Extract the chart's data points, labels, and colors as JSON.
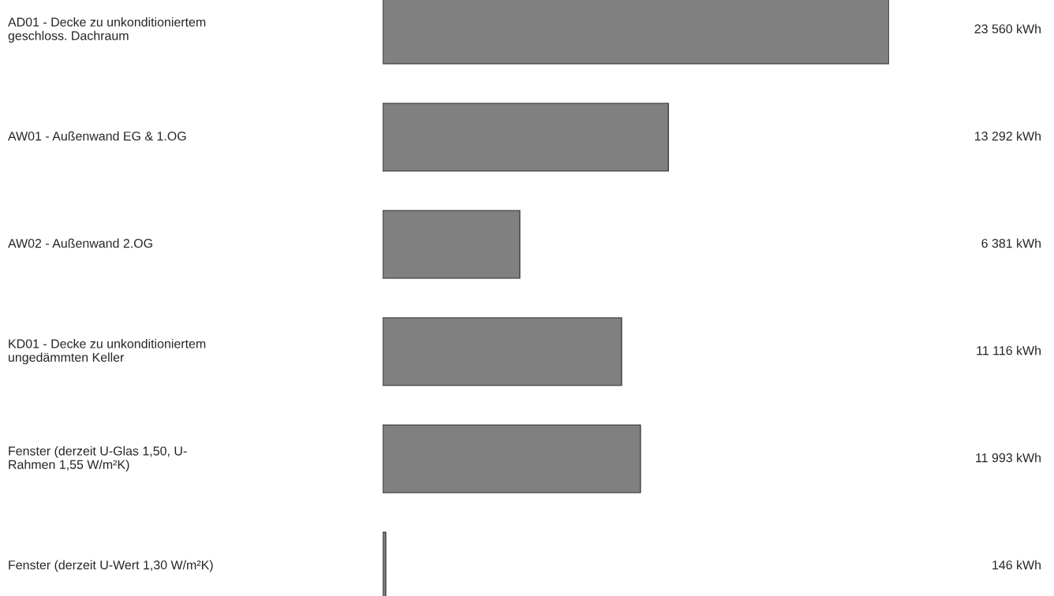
{
  "chart_data": {
    "type": "bar",
    "orientation": "horizontal",
    "categories": [
      "AD01 - Decke zu unkonditioniertem\ngeschloss. Dachraum",
      "AW01 - Außenwand EG & 1.OG",
      "AW02 - Außenwand 2.OG",
      "KD01 - Decke zu unkonditioniertem\nungedämmten Keller",
      "Fenster (derzeit U-Glas 1,50, U-\nRahmen 1,55 W/m²K)",
      "Fenster (derzeit U-Wert 1,30 W/m²K)"
    ],
    "values": [
      23560,
      13292,
      6381,
      11116,
      11993,
      146
    ],
    "value_labels": [
      "23 560 kWh",
      "13 292 kWh",
      "6 381 kWh",
      "11 116 kWh",
      "11 993 kWh",
      "146 kWh"
    ],
    "color": "#808080"
  }
}
